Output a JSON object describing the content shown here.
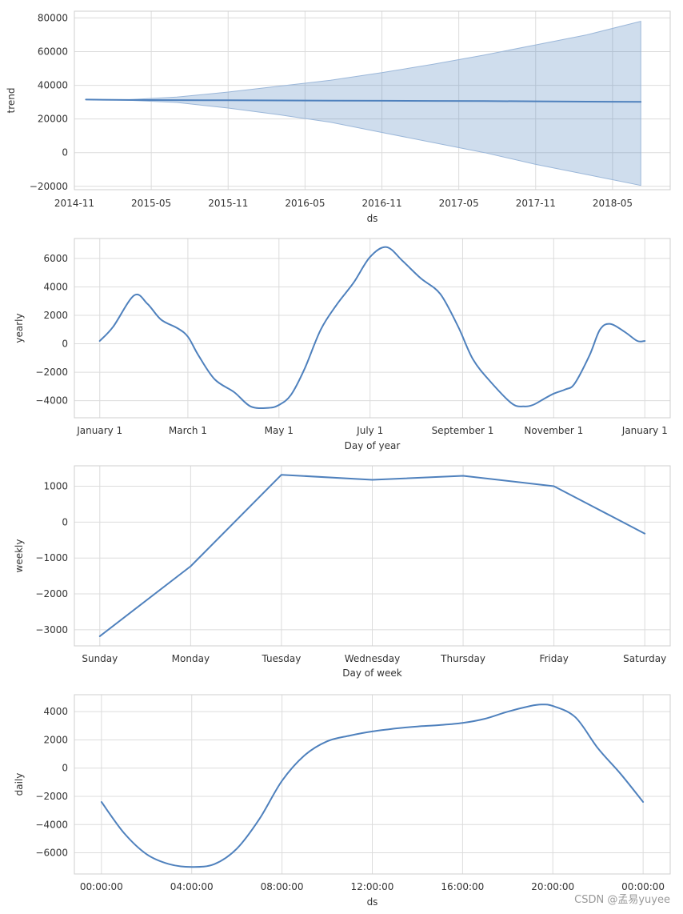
{
  "chart_data": [
    {
      "type": "area",
      "id": "trend",
      "ylabel": "trend",
      "xlabel": "ds",
      "x_ticks": [
        "2014-11",
        "2015-05",
        "2015-11",
        "2016-05",
        "2016-11",
        "2017-05",
        "2017-11",
        "2018-05"
      ],
      "x_tick_pos": [
        0,
        6,
        12,
        18,
        24,
        30,
        36,
        42
      ],
      "xlim": [
        0,
        46.5
      ],
      "ylim": [
        -22000,
        84000
      ],
      "y_ticks": [
        -20000,
        0,
        20000,
        40000,
        60000,
        80000
      ],
      "y_tick_labels": [
        "−20000",
        "0",
        "20000",
        "40000",
        "60000",
        "80000"
      ],
      "series": [
        {
          "name": "trend",
          "x": [
            0.9,
            4,
            8,
            12,
            16,
            20,
            24,
            28,
            32,
            36,
            40,
            44.2
          ],
          "values": [
            31500,
            31300,
            31200,
            31100,
            31000,
            30900,
            30800,
            30700,
            30600,
            30500,
            30300,
            30200
          ]
        },
        {
          "name": "trend_upper",
          "x": [
            0.9,
            4,
            8,
            12,
            16,
            20,
            24,
            28,
            32,
            36,
            40,
            44.2
          ],
          "values": [
            31500,
            31400,
            33000,
            36000,
            39500,
            43000,
            47500,
            52500,
            58000,
            64000,
            70000,
            78000
          ]
        },
        {
          "name": "trend_lower",
          "x": [
            0.9,
            4,
            8,
            12,
            16,
            20,
            24,
            28,
            32,
            36,
            40,
            44.2
          ],
          "values": [
            31500,
            31200,
            29800,
            26500,
            22500,
            18000,
            12000,
            6000,
            0,
            -7000,
            -13000,
            -19500
          ]
        }
      ]
    },
    {
      "type": "line",
      "id": "yearly",
      "ylabel": "yearly",
      "xlabel": "Day of year",
      "x_ticks": [
        "January 1",
        "March 1",
        "May 1",
        "July 1",
        "September 1",
        "November 1",
        "January 1"
      ],
      "x_tick_pos": [
        0,
        59,
        120,
        181,
        243,
        304,
        365
      ],
      "xlim": [
        -17,
        382
      ],
      "ylim": [
        -5200,
        7400
      ],
      "y_ticks": [
        -4000,
        -2000,
        0,
        2000,
        4000,
        6000
      ],
      "y_tick_labels": [
        "−4000",
        "−2000",
        "0",
        "2000",
        "4000",
        "6000"
      ],
      "series": [
        {
          "name": "yearly",
          "x": [
            0,
            9,
            23,
            32,
            41,
            52,
            59,
            66,
            77,
            90,
            101,
            113,
            120,
            128,
            137,
            148,
            159,
            170,
            181,
            192,
            203,
            215,
            228,
            240,
            250,
            262,
            276,
            284,
            290,
            297,
            304,
            312,
            318,
            328,
            335,
            342,
            352,
            360,
            365
          ],
          "values": [
            200,
            1200,
            3400,
            2800,
            1700,
            1100,
            500,
            -800,
            -2500,
            -3400,
            -4400,
            -4500,
            -4300,
            -3600,
            -1800,
            1000,
            2800,
            4300,
            6100,
            6800,
            5800,
            4600,
            3500,
            1200,
            -1100,
            -2700,
            -4200,
            -4400,
            -4300,
            -3900,
            -3500,
            -3200,
            -2800,
            -800,
            1000,
            1400,
            800,
            200,
            200
          ]
        }
      ]
    },
    {
      "type": "line",
      "id": "weekly",
      "ylabel": "weekly",
      "xlabel": "Day of week",
      "x_ticks": [
        "Sunday",
        "Monday",
        "Tuesday",
        "Wednesday",
        "Thursday",
        "Friday",
        "Saturday"
      ],
      "x_tick_pos": [
        0,
        1,
        2,
        3,
        4,
        5,
        6
      ],
      "xlim": [
        -0.28,
        6.28
      ],
      "ylim": [
        -3450,
        1570
      ],
      "y_ticks": [
        -3000,
        -2000,
        -1000,
        0,
        1000
      ],
      "y_tick_labels": [
        "−3000",
        "−2000",
        "−1000",
        "0",
        "1000"
      ],
      "series": [
        {
          "name": "weekly",
          "x": [
            0,
            1,
            2,
            3,
            4,
            5,
            6
          ],
          "values": [
            -3180,
            -1230,
            1320,
            1180,
            1290,
            1000,
            -320
          ]
        }
      ]
    },
    {
      "type": "line",
      "id": "daily",
      "ylabel": "daily",
      "xlabel": "ds",
      "x_ticks": [
        "00:00:00",
        "04:00:00",
        "08:00:00",
        "12:00:00",
        "16:00:00",
        "20:00:00",
        "00:00:00"
      ],
      "x_tick_pos": [
        0,
        4,
        8,
        12,
        16,
        20,
        24
      ],
      "xlim": [
        -1.2,
        25.2
      ],
      "ylim": [
        -7500,
        5200
      ],
      "y_ticks": [
        -6000,
        -4000,
        -2000,
        0,
        2000,
        4000
      ],
      "y_tick_labels": [
        "−6000",
        "−4000",
        "−2000",
        "0",
        "2000",
        "4000"
      ],
      "series": [
        {
          "name": "daily",
          "x": [
            0,
            1,
            2,
            3,
            4,
            5,
            6,
            7,
            8,
            9,
            10,
            11,
            12,
            13,
            14,
            15,
            16,
            17,
            18,
            19,
            19.5,
            20,
            21,
            22,
            23,
            24
          ],
          "values": [
            -2400,
            -4600,
            -6100,
            -6800,
            -7000,
            -6800,
            -5700,
            -3600,
            -900,
            900,
            1900,
            2300,
            2600,
            2800,
            2950,
            3050,
            3200,
            3500,
            4000,
            4400,
            4500,
            4400,
            3600,
            1400,
            -400,
            -2400
          ]
        }
      ]
    }
  ],
  "watermark": "CSDN @孟易yuyee"
}
